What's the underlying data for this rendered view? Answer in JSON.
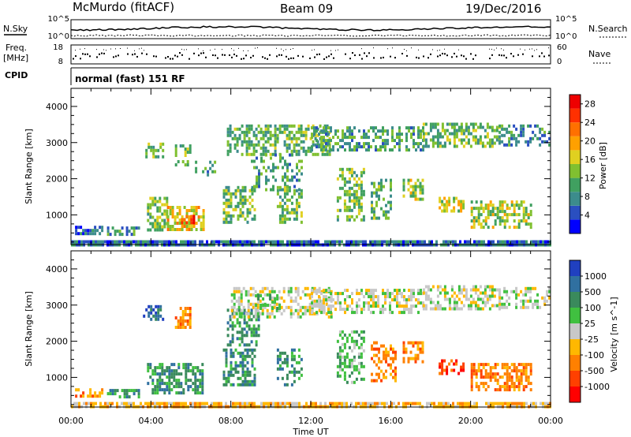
{
  "header": {
    "station": "McMurdo (fitACF)",
    "beam": "Beam 09",
    "date": "19/Dec/2016"
  },
  "strip": {
    "nsky_label": "N.Sky",
    "nsky_ticks": [
      "10^5",
      "10^0"
    ],
    "nsearch_label": "N.Search",
    "nsearch_ticks": [
      "10^5",
      "10^0"
    ],
    "freq_label_top": "Freq.",
    "freq_label_unit": "[MHz]",
    "freq_ticks": [
      "18",
      "8"
    ],
    "nave_label": "Nave",
    "nave_ticks": [
      "60",
      "0"
    ],
    "cpid_label": "CPID",
    "cpid_text": "normal (fast) 151 RF"
  },
  "chart_data": [
    {
      "type": "heatmap",
      "title": "",
      "xlabel": "Time UT",
      "ylabel": "Slant Range [km]",
      "xlim": [
        0,
        24
      ],
      "ylim": [
        180,
        4500
      ],
      "x_ticks": [
        "00:00",
        "04:00",
        "08:00",
        "12:00",
        "16:00",
        "20:00",
        "00:00"
      ],
      "y_ticks": [
        "1000",
        "2000",
        "3000",
        "4000"
      ],
      "colorbar": {
        "label": "Power [dB]",
        "ticks": [
          "4",
          "8",
          "12",
          "16",
          "20",
          "24",
          "28"
        ],
        "range": [
          0,
          30
        ],
        "colors": [
          "#0000ff",
          "#2a4fc0",
          "#3c8c8c",
          "#40a060",
          "#80c030",
          "#e0d020",
          "#ffa000",
          "#ff7000",
          "#ff3000",
          "#ee0000"
        ]
      },
      "regions": [
        {
          "t0": 0.0,
          "t1": 24.0,
          "r0": 180,
          "r1": 300,
          "v": 6,
          "density": 0.9
        },
        {
          "t0": 0.2,
          "t1": 1.6,
          "r0": 500,
          "r1": 700,
          "v": 7,
          "density": 0.55
        },
        {
          "t0": 1.8,
          "t1": 3.4,
          "r0": 500,
          "r1": 680,
          "v": 9,
          "density": 0.5
        },
        {
          "t0": 3.6,
          "t1": 4.6,
          "r0": 2650,
          "r1": 3000,
          "v": 11,
          "density": 0.5
        },
        {
          "t0": 3.8,
          "t1": 4.8,
          "r0": 600,
          "r1": 1500,
          "v": 13,
          "density": 0.6
        },
        {
          "t0": 4.8,
          "t1": 6.6,
          "r0": 600,
          "r1": 1250,
          "v": 17,
          "density": 0.65
        },
        {
          "t0": 5.5,
          "t1": 6.2,
          "r0": 750,
          "r1": 1000,
          "v": 25,
          "density": 0.8
        },
        {
          "t0": 5.2,
          "t1": 6.0,
          "r0": 2400,
          "r1": 2950,
          "v": 12,
          "density": 0.5
        },
        {
          "t0": 6.2,
          "t1": 7.2,
          "r0": 2100,
          "r1": 2500,
          "v": 10,
          "density": 0.35
        },
        {
          "t0": 7.6,
          "t1": 9.2,
          "r0": 800,
          "r1": 1800,
          "v": 12,
          "density": 0.5
        },
        {
          "t0": 7.8,
          "t1": 13.0,
          "r0": 2700,
          "r1": 3500,
          "v": 11,
          "density": 0.55
        },
        {
          "t0": 9.0,
          "t1": 11.5,
          "r0": 1700,
          "r1": 2700,
          "v": 9,
          "density": 0.35
        },
        {
          "t0": 10.3,
          "t1": 11.6,
          "r0": 800,
          "r1": 1800,
          "v": 12,
          "density": 0.5
        },
        {
          "t0": 12.0,
          "t1": 17.6,
          "r0": 2800,
          "r1": 3450,
          "v": 10,
          "density": 0.5
        },
        {
          "t0": 13.3,
          "t1": 14.7,
          "r0": 900,
          "r1": 2300,
          "v": 12,
          "density": 0.45
        },
        {
          "t0": 15.0,
          "t1": 16.0,
          "r0": 900,
          "r1": 2000,
          "v": 11,
          "density": 0.45
        },
        {
          "t0": 16.6,
          "t1": 17.6,
          "r0": 1400,
          "r1": 2000,
          "v": 14,
          "density": 0.5
        },
        {
          "t0": 18.4,
          "t1": 19.6,
          "r0": 1100,
          "r1": 1500,
          "v": 15,
          "density": 0.55
        },
        {
          "t0": 17.6,
          "t1": 21.4,
          "r0": 2900,
          "r1": 3550,
          "v": 12,
          "density": 0.55
        },
        {
          "t0": 20.0,
          "t1": 23.0,
          "r0": 700,
          "r1": 1400,
          "v": 14,
          "density": 0.55
        },
        {
          "t0": 21.4,
          "t1": 24.0,
          "r0": 2900,
          "r1": 3500,
          "v": 8,
          "density": 0.45
        }
      ]
    },
    {
      "type": "heatmap",
      "title": "",
      "xlabel": "Time UT",
      "ylabel": "Slant Range [km]",
      "xlim": [
        0,
        24
      ],
      "ylim": [
        180,
        4500
      ],
      "x_ticks": [
        "00:00",
        "04:00",
        "08:00",
        "12:00",
        "16:00",
        "20:00",
        "00:00"
      ],
      "y_ticks": [
        "1000",
        "2000",
        "3000",
        "4000"
      ],
      "colorbar": {
        "label": "Velocity [m s^-1]",
        "ticks": [
          "1000",
          "500",
          "100",
          "25",
          "-25",
          "-100",
          "-500",
          "-1000"
        ],
        "colors": [
          "#2040c0",
          "#3070a0",
          "#3a8a5c",
          "#40c040",
          "#c8c8c8",
          "#ffb800",
          "#ff8000",
          "#ff4000",
          "#ff0000"
        ]
      },
      "regions": [
        {
          "t0": 0.0,
          "t1": 24.0,
          "r0": 180,
          "r1": 320,
          "c": 5,
          "density": 0.8
        },
        {
          "t0": 0.2,
          "t1": 1.6,
          "r0": 500,
          "r1": 700,
          "c": 6,
          "density": 0.55
        },
        {
          "t0": 1.8,
          "t1": 3.4,
          "r0": 500,
          "r1": 680,
          "c": 2,
          "density": 0.45
        },
        {
          "t0": 3.6,
          "t1": 4.6,
          "r0": 2650,
          "r1": 3000,
          "c": 1,
          "density": 0.5
        },
        {
          "t0": 3.8,
          "t1": 6.6,
          "r0": 600,
          "r1": 1400,
          "c": 2,
          "density": 0.6
        },
        {
          "t0": 5.2,
          "t1": 6.0,
          "r0": 2400,
          "r1": 2950,
          "c": 6,
          "density": 0.45
        },
        {
          "t0": 7.6,
          "t1": 9.2,
          "r0": 800,
          "r1": 1800,
          "c": 2,
          "density": 0.55
        },
        {
          "t0": 7.8,
          "t1": 9.4,
          "r0": 1900,
          "r1": 2900,
          "c": 2,
          "density": 0.5
        },
        {
          "t0": 8.0,
          "t1": 13.0,
          "r0": 2700,
          "r1": 3500,
          "c": 4,
          "density": 0.5
        },
        {
          "t0": 9.2,
          "t1": 10.4,
          "r0": 2900,
          "r1": 3300,
          "c": 3,
          "density": 0.45
        },
        {
          "t0": 10.3,
          "t1": 11.6,
          "r0": 800,
          "r1": 1800,
          "c": 2,
          "density": 0.45
        },
        {
          "t0": 12.0,
          "t1": 17.6,
          "r0": 2800,
          "r1": 3450,
          "c": 4,
          "density": 0.5
        },
        {
          "t0": 13.3,
          "t1": 14.7,
          "r0": 900,
          "r1": 2300,
          "c": 3,
          "density": 0.45
        },
        {
          "t0": 15.0,
          "t1": 16.2,
          "r0": 900,
          "r1": 2000,
          "c": 6,
          "density": 0.5
        },
        {
          "t0": 16.6,
          "t1": 17.6,
          "r0": 1400,
          "r1": 2000,
          "c": 6,
          "density": 0.55
        },
        {
          "t0": 18.4,
          "t1": 19.6,
          "r0": 1100,
          "r1": 1500,
          "c": 7,
          "density": 0.55
        },
        {
          "t0": 17.6,
          "t1": 21.4,
          "r0": 2900,
          "r1": 3550,
          "c": 4,
          "density": 0.55
        },
        {
          "t0": 20.0,
          "t1": 23.0,
          "r0": 700,
          "r1": 1400,
          "c": 6,
          "density": 0.55
        },
        {
          "t0": 21.4,
          "t1": 24.0,
          "r0": 2900,
          "r1": 3500,
          "c": 4,
          "density": 0.45
        }
      ]
    }
  ]
}
